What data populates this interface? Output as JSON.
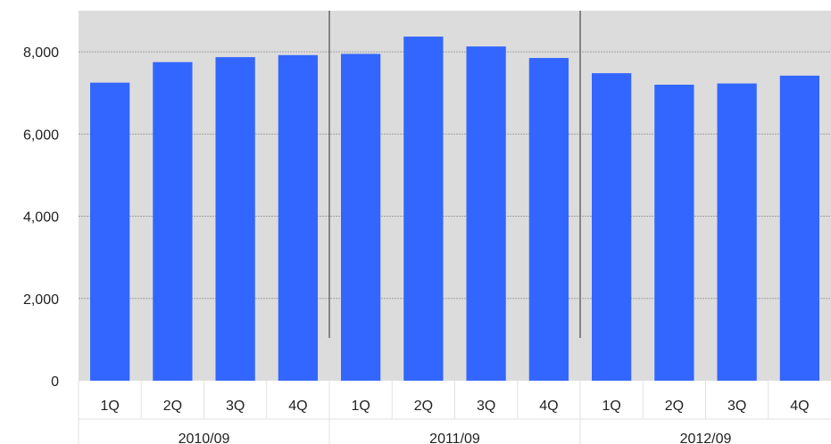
{
  "chart_data": {
    "type": "bar",
    "groups": [
      {
        "label": "2010/09",
        "categories": [
          "1Q",
          "2Q",
          "3Q",
          "4Q"
        ],
        "values": [
          7250,
          7750,
          7870,
          7920
        ]
      },
      {
        "label": "2011/09",
        "categories": [
          "1Q",
          "2Q",
          "3Q",
          "4Q"
        ],
        "values": [
          7950,
          8370,
          8130,
          7850
        ]
      },
      {
        "label": "2012/09",
        "categories": [
          "1Q",
          "2Q",
          "3Q",
          "4Q"
        ],
        "values": [
          7480,
          7200,
          7230,
          7420
        ]
      }
    ],
    "ylim": [
      0,
      9000
    ],
    "yticks": [
      0,
      2000,
      4000,
      6000,
      8000
    ],
    "ytick_labels": [
      "0",
      "2,000",
      "4,000",
      "6,000",
      "8,000"
    ],
    "grid": true,
    "colors": {
      "bar": "#3366ff",
      "plot_background": "#dcdcdc",
      "gridline": "#a0a0a0",
      "separator": "#666666"
    }
  }
}
